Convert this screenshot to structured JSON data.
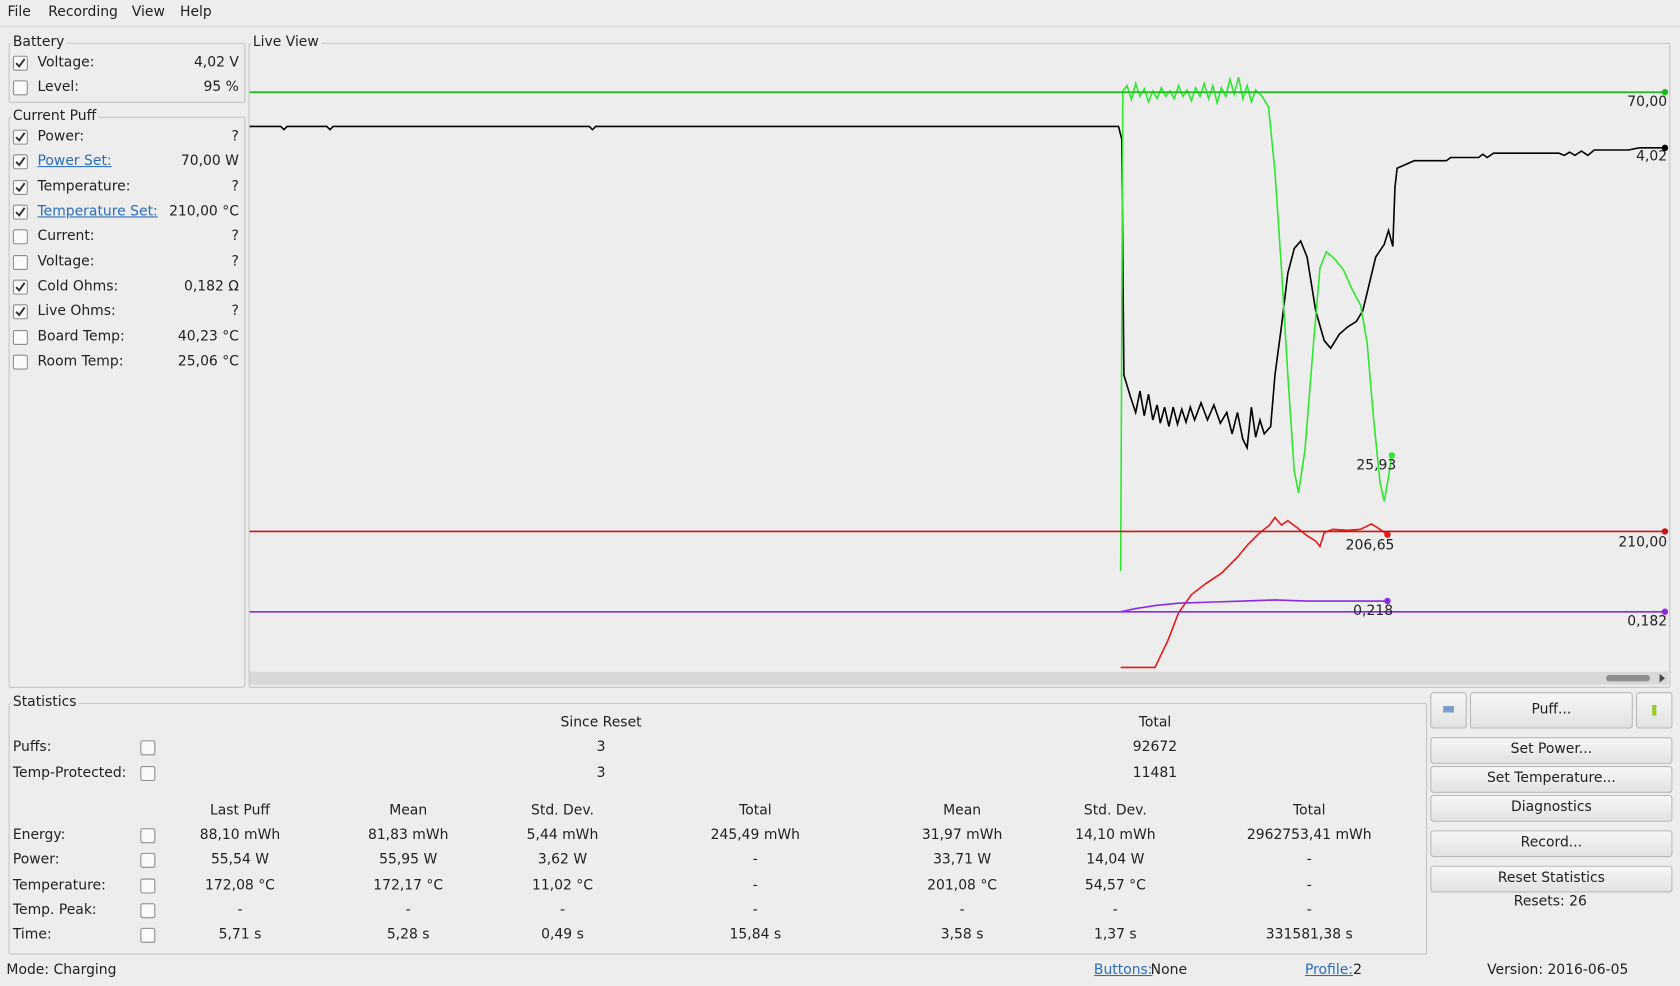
{
  "menu": [
    "File",
    "Recording",
    "View",
    "Help"
  ],
  "battery": {
    "title": "Battery",
    "rows": [
      {
        "label": "Voltage:",
        "value": "4,02 V",
        "checked": true
      },
      {
        "label": "Level:",
        "value": "95 %",
        "checked": false
      }
    ]
  },
  "current_puff": {
    "title": "Current Puff",
    "rows": [
      {
        "label": "Power:",
        "value": "?",
        "checked": true,
        "link": false
      },
      {
        "label": "Power Set:",
        "value": "70,00 W",
        "checked": true,
        "link": true
      },
      {
        "label": "Temperature:",
        "value": "?",
        "checked": true,
        "link": false
      },
      {
        "label": "Temperature Set:",
        "value": "210,00 °C",
        "checked": true,
        "link": true
      },
      {
        "label": "Current:",
        "value": "?",
        "checked": false,
        "link": false
      },
      {
        "label": "Voltage:",
        "value": "?",
        "checked": false,
        "link": false
      },
      {
        "label": "Cold Ohms:",
        "value": "0,182 Ω",
        "checked": true,
        "link": false
      },
      {
        "label": "Live Ohms:",
        "value": "?",
        "checked": true,
        "link": false
      },
      {
        "label": "Board Temp:",
        "value": "40,23 °C",
        "checked": false,
        "link": false
      },
      {
        "label": "Room Temp:",
        "value": "25,06 °C",
        "checked": false,
        "link": false
      }
    ]
  },
  "live_view": {
    "title": "Live View",
    "labels": [
      "70,00",
      "4,02",
      "25,93",
      "206,65",
      "210,00",
      "0,218",
      "0,182"
    ]
  },
  "statistics": {
    "title": "Statistics",
    "count_headers": [
      "Since Reset",
      "Total"
    ],
    "count_rows": [
      {
        "label": "Puffs:",
        "values": [
          "3",
          "92672"
        ]
      },
      {
        "label": "Temp-Protected:",
        "values": [
          "3",
          "11481"
        ]
      }
    ],
    "headers": [
      "Last Puff",
      "Mean",
      "Std. Dev.",
      "Total",
      "Mean",
      "Std. Dev.",
      "Total"
    ],
    "rows": [
      {
        "label": "Energy:",
        "values": [
          "88,10 mWh",
          "81,83 mWh",
          "5,44 mWh",
          "245,49 mWh",
          "31,97 mWh",
          "14,10 mWh",
          "2962753,41 mWh"
        ]
      },
      {
        "label": "Power:",
        "values": [
          "55,54 W",
          "55,95 W",
          "3,62 W",
          "-",
          "33,71 W",
          "14,04 W",
          "-"
        ]
      },
      {
        "label": "Temperature:",
        "values": [
          "172,08 °C",
          "172,17 °C",
          "11,02 °C",
          "-",
          "201,08 °C",
          "54,57 °C",
          "-"
        ]
      },
      {
        "label": "Temp. Peak:",
        "values": [
          "-",
          "-",
          "-",
          "-",
          "-",
          "-",
          "-"
        ]
      },
      {
        "label": "Time:",
        "values": [
          "5,71 s",
          "5,28 s",
          "0,49 s",
          "15,84 s",
          "3,58 s",
          "1,37 s",
          "331581,38 s"
        ]
      }
    ]
  },
  "buttons": {
    "puff": "Puff...",
    "list": [
      "Set Power...",
      "Set Temperature...",
      "Diagnostics",
      "Record...",
      "Reset Statistics"
    ],
    "resets": "Resets: 26"
  },
  "status": {
    "mode": "Mode: Charging",
    "buttons_link": "Buttons:",
    "buttons_value": "None",
    "profile_link": "Profile:",
    "profile_value": "2",
    "version": "Version: 2016-06-05"
  }
}
